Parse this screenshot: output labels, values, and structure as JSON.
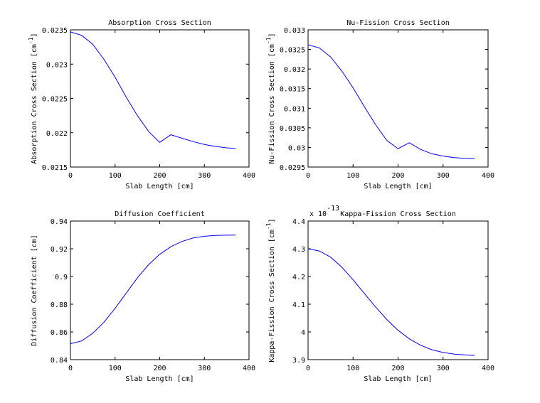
{
  "chart_data": [
    {
      "type": "line",
      "title": "Absorption Cross Section",
      "xlabel": "Slab Length [cm]",
      "ylabel": "Absorption Cross Section [cm",
      "ylabel_sup": "-1",
      "ylabel_end": "]",
      "xlim": [
        0,
        400
      ],
      "ylim": [
        0.0215,
        0.0235
      ],
      "xticks": [
        0,
        100,
        200,
        300,
        400
      ],
      "xtick_labels": [
        "0",
        "100",
        "200",
        "300",
        "400"
      ],
      "yticks": [
        0.0215,
        0.022,
        0.0225,
        0.023,
        0.0235
      ],
      "ytick_labels": [
        "0.0215",
        "0.022",
        "0.0225",
        "0.023",
        "0.0235"
      ],
      "exponent_label": null,
      "line_color": "#0000ff",
      "series": [
        {
          "x": [
            0,
            25,
            50,
            75,
            100,
            125,
            150,
            175,
            200,
            225,
            250,
            275,
            300,
            325,
            350,
            370
          ],
          "y": [
            0.02347,
            0.02342,
            0.02329,
            0.02307,
            0.02281,
            0.02252,
            0.02225,
            0.02202,
            0.02186,
            0.02197,
            0.02192,
            0.02187,
            0.02183,
            0.0218,
            0.02178,
            0.02177
          ]
        }
      ]
    },
    {
      "type": "line",
      "title": "Nu-Fission Cross Section",
      "xlabel": "Slab Length [cm]",
      "ylabel": "Nu-Fission Cross Section [cm",
      "ylabel_sup": "-1",
      "ylabel_end": "]",
      "xlim": [
        0,
        400
      ],
      "ylim": [
        0.0295,
        0.033
      ],
      "xticks": [
        0,
        100,
        200,
        300,
        400
      ],
      "xtick_labels": [
        "0",
        "100",
        "200",
        "300",
        "400"
      ],
      "yticks": [
        0.0295,
        0.03,
        0.0305,
        0.031,
        0.0315,
        0.032,
        0.0325,
        0.033
      ],
      "ytick_labels": [
        "0.0295",
        "0.03",
        "0.0305",
        "0.031",
        "0.0315",
        "0.032",
        "0.0325",
        "0.033"
      ],
      "exponent_label": null,
      "line_color": "#0000ff",
      "series": [
        {
          "x": [
            0,
            25,
            50,
            75,
            100,
            125,
            150,
            175,
            200,
            225,
            250,
            275,
            300,
            325,
            350,
            370
          ],
          "y": [
            0.03262,
            0.03254,
            0.03231,
            0.03195,
            0.03152,
            0.03104,
            0.03058,
            0.03018,
            0.02997,
            0.03012,
            0.02995,
            0.02984,
            0.02978,
            0.02974,
            0.02972,
            0.02971
          ]
        }
      ]
    },
    {
      "type": "line",
      "title": "Diffusion Coefficient",
      "xlabel": "Slab Length [cm]",
      "ylabel": "Diffusion Coefficient [cm]",
      "ylabel_sup": "",
      "ylabel_end": "",
      "xlim": [
        0,
        400
      ],
      "ylim": [
        0.84,
        0.94
      ],
      "xticks": [
        0,
        100,
        200,
        300,
        400
      ],
      "xtick_labels": [
        "0",
        "100",
        "200",
        "300",
        "400"
      ],
      "yticks": [
        0.84,
        0.86,
        0.88,
        0.9,
        0.92,
        0.94
      ],
      "ytick_labels": [
        "0.84",
        "0.86",
        "0.88",
        "0.9",
        "0.92",
        "0.94"
      ],
      "exponent_label": null,
      "line_color": "#0000ff",
      "series": [
        {
          "x": [
            0,
            25,
            50,
            75,
            100,
            125,
            150,
            175,
            200,
            225,
            250,
            275,
            300,
            325,
            350,
            370
          ],
          "y": [
            0.8515,
            0.8535,
            0.859,
            0.867,
            0.877,
            0.888,
            0.899,
            0.9085,
            0.916,
            0.9215,
            0.9253,
            0.9278,
            0.929,
            0.9296,
            0.9298,
            0.9299
          ]
        }
      ]
    },
    {
      "type": "line",
      "title": "Kappa-Fission Cross Section",
      "xlabel": "Slab Length [cm]",
      "ylabel": "Kappa-Fission Cross Section [cm",
      "ylabel_sup": "-1",
      "ylabel_end": "]",
      "xlim": [
        0,
        400
      ],
      "ylim": [
        3.9,
        4.4
      ],
      "xticks": [
        0,
        100,
        200,
        300,
        400
      ],
      "xtick_labels": [
        "0",
        "100",
        "200",
        "300",
        "400"
      ],
      "yticks": [
        3.9,
        4.0,
        4.1,
        4.2,
        4.3,
        4.4
      ],
      "ytick_labels": [
        "3.9",
        "4",
        "4.1",
        "4.2",
        "4.3",
        "4.4"
      ],
      "exponent_label": "x 10",
      "exponent_power": "-13",
      "line_color": "#0000ff",
      "series": [
        {
          "x": [
            0,
            25,
            50,
            75,
            100,
            125,
            150,
            175,
            200,
            225,
            250,
            275,
            300,
            325,
            350,
            370
          ],
          "y": [
            4.3,
            4.292,
            4.27,
            4.234,
            4.188,
            4.139,
            4.09,
            4.045,
            4.006,
            3.975,
            3.952,
            3.936,
            3.926,
            3.92,
            3.917,
            3.915
          ]
        }
      ]
    }
  ]
}
